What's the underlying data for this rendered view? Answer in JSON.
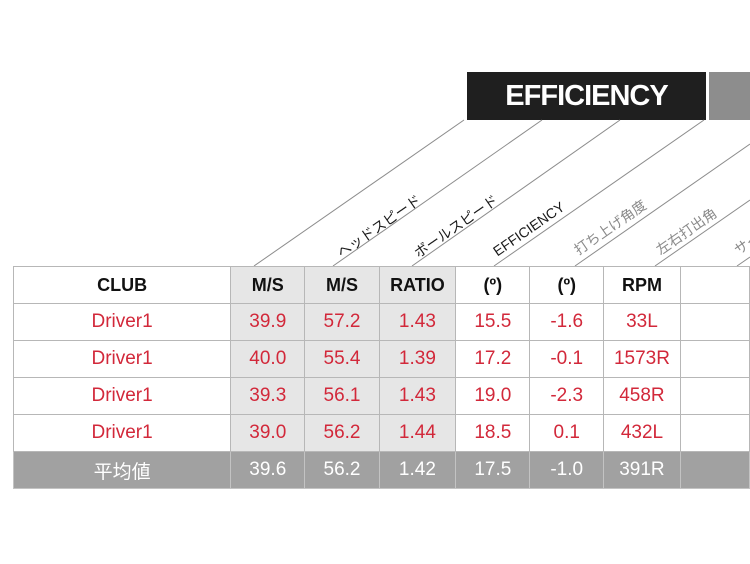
{
  "banner": {
    "efficiency_label": "EFFICIENCY"
  },
  "diagonal_labels": [
    "ヘッドスピード",
    "ボールスピード",
    "EFFICIENCY",
    "打ち上げ角度",
    "左右打出角",
    "サイ"
  ],
  "table": {
    "headers": [
      "CLUB",
      "M/S",
      "M/S",
      "RATIO",
      "(º)",
      "(º)",
      "RPM",
      ""
    ],
    "rows": [
      [
        "Driver1",
        "39.9",
        "57.2",
        "1.43",
        "15.5",
        "-1.6",
        "33L",
        ""
      ],
      [
        "Driver1",
        "40.0",
        "55.4",
        "1.39",
        "17.2",
        "-0.1",
        "1573R",
        ""
      ],
      [
        "Driver1",
        "39.3",
        "56.1",
        "1.43",
        "19.0",
        "-2.3",
        "458R",
        ""
      ],
      [
        "Driver1",
        "39.0",
        "56.2",
        "1.44",
        "18.5",
        "0.1",
        "432L",
        ""
      ]
    ],
    "average": [
      "平均値",
      "39.6",
      "56.2",
      "1.42",
      "17.5",
      "-1.0",
      "391R",
      ""
    ]
  },
  "colors": {
    "data_text": "#d2283a",
    "banner_dark": "#1f1f1f",
    "banner_grey": "#8d8d8d",
    "average_row": "#a1a1a1",
    "shaded_column": "#e6e6e6"
  }
}
